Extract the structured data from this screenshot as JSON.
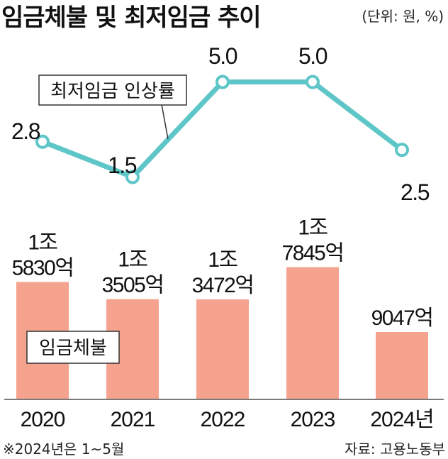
{
  "title": "임금체불 및 최저임금 추이",
  "unit": "(단위: 원, %)",
  "note": "※2024년은 1~5월",
  "source": "자료: 고용노동부",
  "colors": {
    "bar": "#f5a38f",
    "line": "#5ec6c8",
    "axis": "#7a7a7a"
  },
  "chart_data": {
    "type": "bar",
    "categories": [
      "2020",
      "2021",
      "2022",
      "2023",
      "2024년"
    ],
    "series": [
      {
        "name": "임금체불",
        "type": "bar",
        "values": [
          15830,
          13505,
          13472,
          17845,
          9047
        ],
        "labels": [
          [
            "1조",
            "5830억"
          ],
          [
            "1조",
            "3505억"
          ],
          [
            "1조",
            "3472억"
          ],
          [
            "1조",
            "7845억"
          ],
          [
            "9047억"
          ]
        ]
      },
      {
        "name": "최저임금 인상률",
        "type": "line",
        "values": [
          2.8,
          1.5,
          5.0,
          5.0,
          2.5
        ],
        "labels": [
          "2.8",
          "1.5",
          "5.0",
          "5.0",
          "2.5"
        ]
      }
    ]
  }
}
